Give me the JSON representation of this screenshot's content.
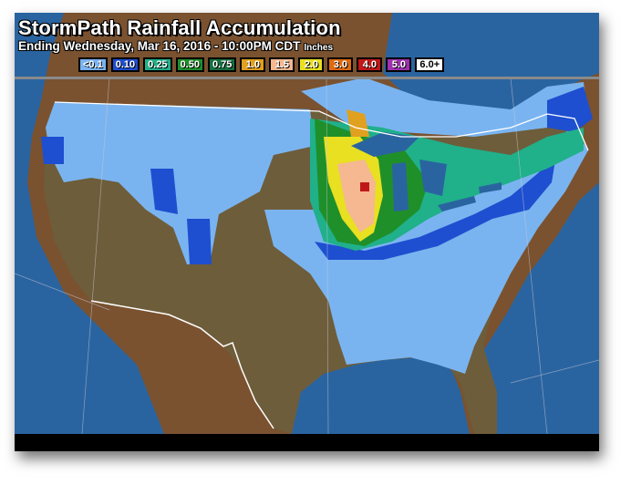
{
  "header": {
    "title": "StormPath Rainfall Accumulation",
    "subtitle": "Ending Wednesday, Mar 16, 2016 - 10:00PM CDT",
    "units": "Inches"
  },
  "legend": [
    {
      "label": "<0.1",
      "color": "#7ab4f0"
    },
    {
      "label": "0.10",
      "color": "#1e4fd0"
    },
    {
      "label": "0.25",
      "color": "#20b08a"
    },
    {
      "label": "0.50",
      "color": "#1f8f2a"
    },
    {
      "label": "0.75",
      "color": "#177040"
    },
    {
      "label": "1.0",
      "color": "#e0a020"
    },
    {
      "label": "1.5",
      "color": "#f5b890"
    },
    {
      "label": "2.0",
      "color": "#e8e020"
    },
    {
      "label": "3.0",
      "color": "#e06a10"
    },
    {
      "label": "4.0",
      "color": "#c01818"
    },
    {
      "label": "5.0",
      "color": "#a030b0"
    },
    {
      "label": "6.0+",
      "color": "#ffffff"
    }
  ],
  "colors": {
    "ocean": "#2a64a0",
    "land_foreign": "#7a5230",
    "land_us": "#6e5d3a"
  }
}
